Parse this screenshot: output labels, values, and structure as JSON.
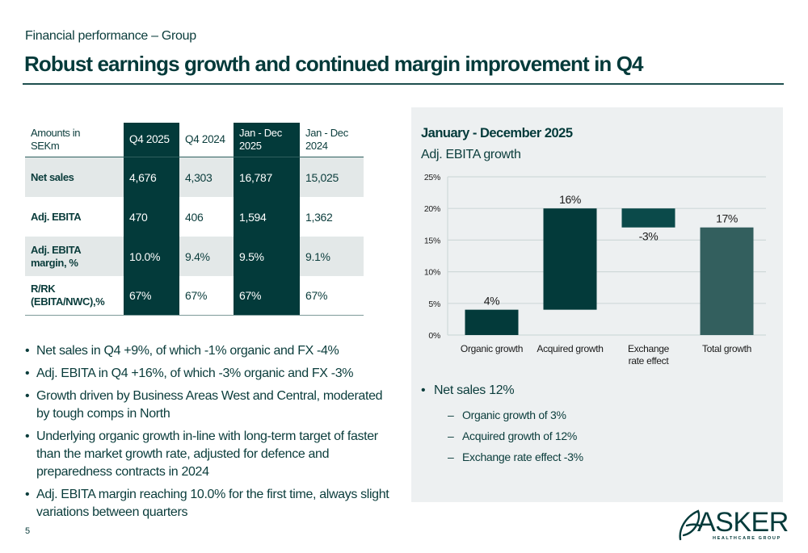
{
  "header": {
    "section": "Financial performance – Group",
    "title": "Robust earnings growth and continued margin improvement in Q4"
  },
  "table": {
    "columns": [
      "Amounts in SEKm",
      "Q4 2025",
      "Q4 2024",
      "Jan - Dec 2025",
      "Jan - Dec 2024"
    ],
    "column_lines": [
      [
        "Amounts in",
        "SEKm"
      ],
      [
        "Q4 2025"
      ],
      [
        "Q4 2024"
      ],
      [
        "Jan - Dec",
        "2025"
      ],
      [
        "Jan - Dec",
        "2024"
      ]
    ],
    "highlighted_columns": [
      "Q4 2025",
      "Jan - Dec 2025"
    ],
    "rows": [
      {
        "label": "Net sales",
        "label_lines": [
          "Net sales"
        ],
        "values": [
          "4,676",
          "4,303",
          "16,787",
          "15,025"
        ]
      },
      {
        "label": "Adj. EBITA",
        "label_lines": [
          "Adj. EBITA"
        ],
        "values": [
          "470",
          "406",
          "1,594",
          "1,362"
        ]
      },
      {
        "label": "Adj. EBITA margin, %",
        "label_lines": [
          "Adj. EBITA",
          "margin, %"
        ],
        "values": [
          "10.0%",
          "9.4%",
          "9.5%",
          "9.1%"
        ]
      },
      {
        "label": "R/RK (EBITA/NWC),%",
        "label_lines": [
          "R/RK",
          "(EBITA/NWC),%"
        ],
        "values": [
          "67%",
          "67%",
          "67%",
          "67%"
        ]
      }
    ]
  },
  "left_bullets": [
    "Net sales in Q4 +9%, of which -1% organic and FX -4%",
    "Adj. EBITA in Q4 +16%, of which -3% organic and FX -3%",
    "Growth driven by Business Areas West and Central, moderated by tough comps in North",
    "Underlying organic growth in-line with long-term target of faster than the market growth rate, adjusted for defence and preparedness contracts in 2024",
    "Adj. EBITA margin reaching 10.0% for the first time, always slight variations between quarters"
  ],
  "bullet_glyph": "•",
  "dash_glyph": "–",
  "page_number": "5",
  "panel": {
    "title": "January - December 2025",
    "subtitle": "Adj. EBITA growth",
    "bullet": "Net sales 12%",
    "sub_bullets": [
      "Organic growth of 3%",
      "Acquired growth of 12%",
      "Exchange rate effect -3%"
    ]
  },
  "chart_data": {
    "type": "bar",
    "subtype": "waterfall",
    "title": "January - December 2025",
    "subtitle": "Adj. EBITA growth",
    "xlabel": "",
    "ylabel": "",
    "categories": [
      "Organic growth",
      "Acquired growth",
      "Exchange rate effect",
      "Total growth"
    ],
    "category_lines": [
      [
        "Organic growth"
      ],
      [
        "Acquired growth"
      ],
      [
        "Exchange",
        "rate effect"
      ],
      [
        "Total growth"
      ]
    ],
    "values": [
      4,
      16,
      -3,
      17
    ],
    "bases": [
      0,
      4,
      20,
      0
    ],
    "data_labels": [
      "4%",
      "16%",
      "-3%",
      "17%"
    ],
    "is_total": [
      false,
      false,
      false,
      true
    ],
    "ylim": [
      0,
      25
    ],
    "yticks": [
      0,
      5,
      10,
      15,
      20,
      25
    ],
    "ytick_labels": [
      "0%",
      "5%",
      "10%",
      "15%",
      "20%",
      "25%"
    ],
    "grid": true,
    "legend": "none",
    "colors": {
      "increase": "#033a3a",
      "decrease": "#0b4a4a",
      "total": "#335f5e",
      "grid": "#cfd9d9",
      "label": "#1a1a1a"
    }
  },
  "logo": {
    "name": "ASKER",
    "tagline": "HEALTHCARE GROUP"
  }
}
